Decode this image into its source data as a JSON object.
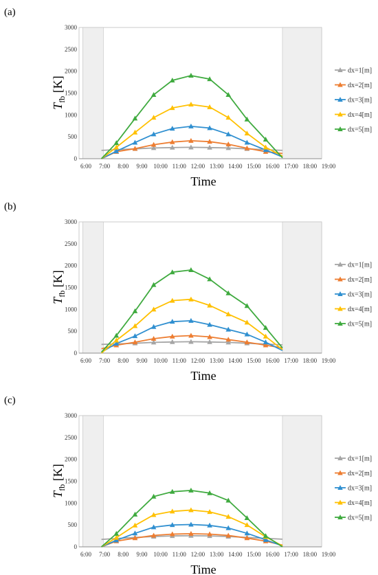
{
  "figure": {
    "xlabel": "Time",
    "ylabel_symbol": "T",
    "ylabel_subscript": "fb",
    "ylabel_unit": " [K]"
  },
  "chart_data": [
    {
      "panel": "(a)",
      "type": "line",
      "x_tick_labels": [
        "6:00",
        "7:00",
        "8:00",
        "9:00",
        "10:00",
        "11:00",
        "12:00",
        "13:00",
        "14:00",
        "15:00",
        "16:00",
        "17:00",
        "18:00",
        "19:00"
      ],
      "xlim": [
        6,
        19
      ],
      "ylim": [
        0,
        3000
      ],
      "y_ticks": [
        0,
        500,
        1000,
        1500,
        2000,
        2500,
        3000
      ],
      "xlabel": "Time",
      "ylabel": "T_fb [K]",
      "shaded_regions": [
        [
          6.2,
          7.3
        ],
        [
          16.9,
          19
        ]
      ],
      "legend_position": "right",
      "series": [
        {
          "name": "dx=1[m]",
          "color": "#a5a5a5",
          "x": [
            7.2,
            8,
            9,
            10,
            11,
            12,
            13,
            14,
            15,
            16,
            16.9
          ],
          "y": [
            190,
            205,
            225,
            245,
            255,
            260,
            255,
            245,
            225,
            205,
            190
          ]
        },
        {
          "name": "dx=2[m]",
          "color": "#ed7d31",
          "x": [
            7.2,
            8,
            9,
            10,
            11,
            12,
            13,
            14,
            15,
            16,
            16.9
          ],
          "y": [
            0,
            160,
            230,
            320,
            380,
            410,
            390,
            330,
            240,
            160,
            120
          ]
        },
        {
          "name": "dx=3[m]",
          "color": "#2f8fd0",
          "x": [
            7.2,
            8,
            9,
            10,
            11,
            12,
            13,
            14,
            15,
            16,
            16.9
          ],
          "y": [
            0,
            170,
            370,
            560,
            690,
            740,
            700,
            560,
            370,
            200,
            40
          ]
        },
        {
          "name": "dx=4[m]",
          "color": "#ffc000",
          "x": [
            7.2,
            8,
            9,
            10,
            11,
            12,
            13,
            14,
            15,
            16,
            16.9
          ],
          "y": [
            0,
            260,
            600,
            940,
            1160,
            1240,
            1180,
            940,
            580,
            260,
            60
          ]
        },
        {
          "name": "dx=5[m]",
          "color": "#3faa3f",
          "x": [
            7.2,
            8,
            9,
            10,
            11,
            12,
            13,
            14,
            15,
            16,
            16.9
          ],
          "y": [
            0,
            360,
            920,
            1460,
            1790,
            1900,
            1820,
            1460,
            900,
            440,
            20
          ]
        }
      ]
    },
    {
      "panel": "(b)",
      "type": "line",
      "x_tick_labels": [
        "6:00",
        "7:00",
        "8:00",
        "9:00",
        "10:00",
        "11:00",
        "12:00",
        "13:00",
        "14:00",
        "15:00",
        "16:00",
        "17:00",
        "18:00",
        "19:00"
      ],
      "xlim": [
        6,
        19
      ],
      "ylim": [
        0,
        3000
      ],
      "y_ticks": [
        0,
        500,
        1000,
        1500,
        2000,
        2500,
        3000
      ],
      "xlabel": "Time",
      "ylabel": "T_fb [K]",
      "shaded_regions": [
        [
          6.2,
          7.3
        ],
        [
          16.9,
          19
        ]
      ],
      "legend_position": "right",
      "series": [
        {
          "name": "dx=1[m]",
          "color": "#a5a5a5",
          "x": [
            7.2,
            8,
            9,
            10,
            11,
            12,
            13,
            14,
            15,
            16,
            16.9
          ],
          "y": [
            200,
            210,
            225,
            245,
            255,
            260,
            255,
            245,
            225,
            205,
            190
          ]
        },
        {
          "name": "dx=2[m]",
          "color": "#ed7d31",
          "x": [
            7.2,
            8,
            9,
            10,
            11,
            12,
            13,
            14,
            15,
            16,
            16.9
          ],
          "y": [
            100,
            180,
            250,
            330,
            380,
            400,
            370,
            310,
            250,
            180,
            120
          ]
        },
        {
          "name": "dx=3[m]",
          "color": "#2f8fd0",
          "x": [
            7.2,
            8,
            9,
            10,
            11,
            12,
            13,
            14,
            15,
            16,
            16.9
          ],
          "y": [
            20,
            220,
            390,
            600,
            720,
            740,
            650,
            540,
            430,
            250,
            60
          ]
        },
        {
          "name": "dx=4[m]",
          "color": "#ffc000",
          "x": [
            7.2,
            8,
            9,
            10,
            11,
            12,
            13,
            14,
            15,
            16,
            16.9
          ],
          "y": [
            0,
            290,
            620,
            1000,
            1200,
            1230,
            1090,
            890,
            700,
            380,
            80
          ]
        },
        {
          "name": "dx=5[m]",
          "color": "#3faa3f",
          "x": [
            7.2,
            8,
            9,
            10,
            11,
            12,
            13,
            14,
            15,
            16,
            16.9
          ],
          "y": [
            20,
            400,
            960,
            1560,
            1850,
            1900,
            1690,
            1370,
            1080,
            580,
            120
          ]
        }
      ]
    },
    {
      "panel": "(c)",
      "type": "line",
      "x_tick_labels": [
        "6:00",
        "7:00",
        "8:00",
        "9:00",
        "10:00",
        "11:00",
        "12:00",
        "13:00",
        "14:00",
        "15:00",
        "16:00",
        "17:00",
        "18:00",
        "19:00"
      ],
      "xlim": [
        6,
        19
      ],
      "ylim": [
        0,
        3000
      ],
      "y_ticks": [
        0,
        500,
        1000,
        1500,
        2000,
        2500,
        3000
      ],
      "xlabel": "Time",
      "ylabel": "T_fb [K]",
      "shaded_regions": [
        [
          6.2,
          7.3
        ],
        [
          16.9,
          19
        ]
      ],
      "legend_position": "right",
      "series": [
        {
          "name": "dx=1[m]",
          "color": "#a5a5a5",
          "x": [
            7.2,
            8,
            9,
            10,
            11,
            12,
            13,
            14,
            15,
            16,
            16.9
          ],
          "y": [
            170,
            190,
            215,
            235,
            250,
            255,
            250,
            235,
            215,
            195,
            175
          ]
        },
        {
          "name": "dx=2[m]",
          "color": "#ed7d31",
          "x": [
            7.2,
            8,
            9,
            10,
            11,
            12,
            13,
            14,
            15,
            16,
            16.9
          ],
          "y": [
            0,
            130,
            200,
            260,
            290,
            300,
            290,
            260,
            200,
            130,
            40
          ]
        },
        {
          "name": "dx=3[m]",
          "color": "#2f8fd0",
          "x": [
            7.2,
            8,
            9,
            10,
            11,
            12,
            13,
            14,
            15,
            16,
            16.9
          ],
          "y": [
            0,
            150,
            310,
            450,
            500,
            510,
            490,
            430,
            310,
            160,
            20
          ]
        },
        {
          "name": "dx=4[m]",
          "color": "#ffc000",
          "x": [
            7.2,
            8,
            9,
            10,
            11,
            12,
            13,
            14,
            15,
            16,
            16.9
          ],
          "y": [
            0,
            210,
            490,
            730,
            810,
            840,
            800,
            690,
            500,
            230,
            20
          ]
        },
        {
          "name": "dx=5[m]",
          "color": "#3faa3f",
          "x": [
            7.2,
            8,
            9,
            10,
            11,
            12,
            13,
            14,
            15,
            16,
            16.9
          ],
          "y": [
            0,
            300,
            740,
            1150,
            1260,
            1290,
            1230,
            1060,
            660,
            250,
            0
          ]
        }
      ]
    }
  ]
}
